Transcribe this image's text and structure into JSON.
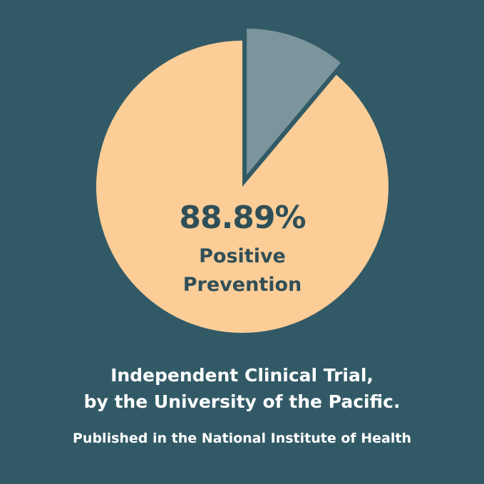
{
  "chart_data": {
    "type": "pie",
    "slices": [
      {
        "label": "Positive Prevention",
        "value": 88.89,
        "color": "#fccd97"
      },
      {
        "value": 11.11,
        "color": "#7c959c",
        "exploded": true
      }
    ],
    "data_label": "88.89%",
    "slice_label_line1": "Positive",
    "slice_label_line2": "Prevention"
  },
  "caption": {
    "line1": "Independent Clinical Trial,",
    "line2": "by the University of the Pacific.",
    "line3": "Published in the National Institute of Health"
  },
  "colors": {
    "background": "#325a66",
    "text_dark": "#2f4f58",
    "text_light": "#ffffff"
  }
}
